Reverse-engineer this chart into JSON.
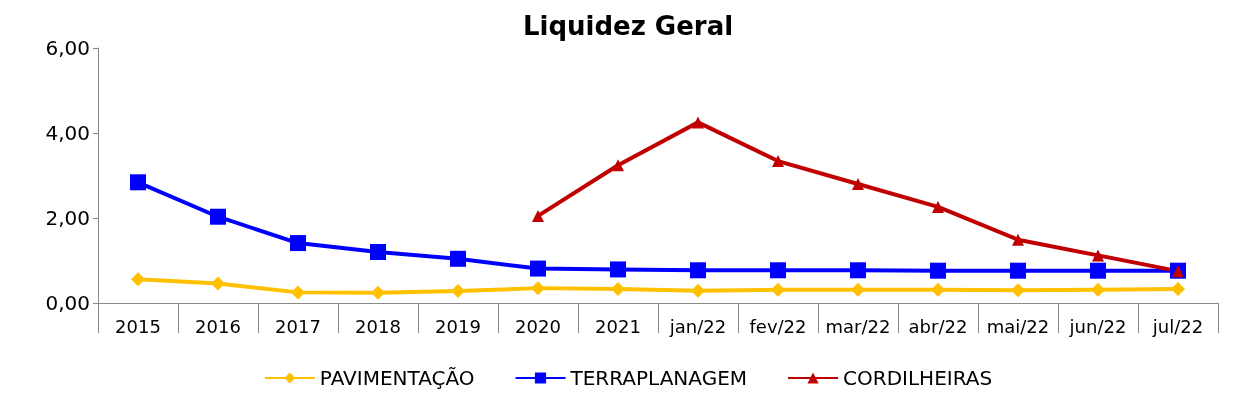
{
  "chart_data": {
    "type": "line",
    "title": "Liquidez Geral",
    "categories": [
      "2015",
      "2016",
      "2017",
      "2018",
      "2019",
      "2020",
      "2021",
      "jan/22",
      "fev/22",
      "mar/22",
      "abr/22",
      "mai/22",
      "jun/22",
      "jul/22"
    ],
    "series": [
      {
        "name": "PAVIMENTAÇÃO",
        "color": "#ffc000",
        "marker": "diamond",
        "values": [
          0.56,
          0.46,
          0.25,
          0.24,
          0.28,
          0.35,
          0.33,
          0.29,
          0.31,
          0.31,
          0.31,
          0.3,
          0.31,
          0.33
        ]
      },
      {
        "name": "TERRAPLANAGEM",
        "color": "#0000ff",
        "marker": "square",
        "values": [
          2.84,
          2.03,
          1.41,
          1.2,
          1.04,
          0.81,
          0.79,
          0.77,
          0.77,
          0.77,
          0.76,
          0.76,
          0.76,
          0.76
        ]
      },
      {
        "name": "CORDILHEIRAS",
        "color": "#c00000",
        "marker": "triangle",
        "values": [
          null,
          null,
          null,
          null,
          null,
          2.05,
          3.24,
          4.25,
          3.34,
          2.8,
          2.26,
          1.49,
          1.12,
          0.75
        ]
      }
    ],
    "ylim": [
      0,
      6
    ],
    "yticks": [
      {
        "value": 0,
        "label": "0,00"
      },
      {
        "value": 2,
        "label": "2,00"
      },
      {
        "value": 4,
        "label": "4,00"
      },
      {
        "value": 6,
        "label": "6,00"
      }
    ],
    "grid": false,
    "legend": "bottom"
  }
}
